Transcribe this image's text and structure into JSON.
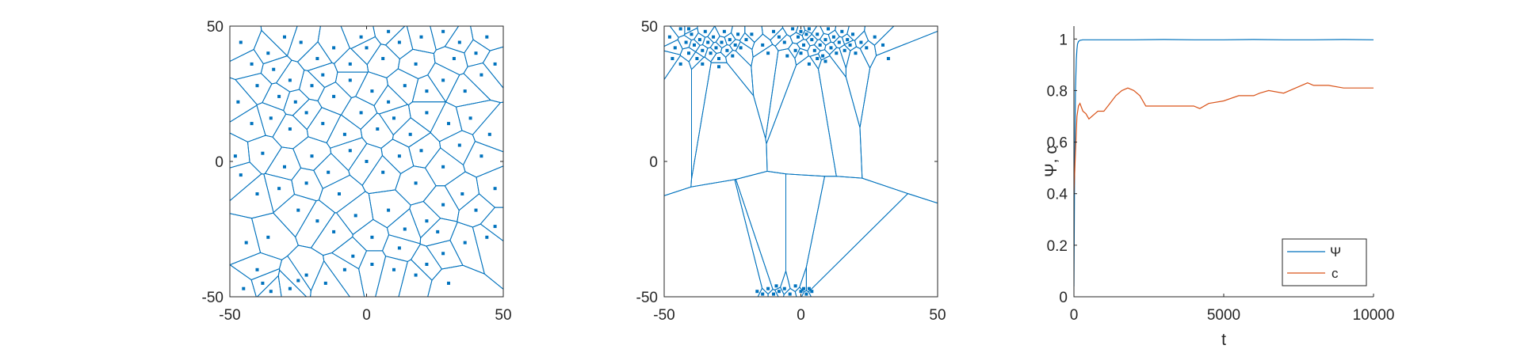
{
  "colors": {
    "blue": "#0072BD",
    "orange": "#D95319",
    "axis": "#262626",
    "background": "#ffffff"
  },
  "chart_data": [
    {
      "type": "scatter",
      "description_kind": "voronoi",
      "xlim": [
        -50,
        50
      ],
      "ylim": [
        -50,
        50
      ],
      "xticks": [
        "-50",
        "0",
        "50"
      ],
      "yticks": [
        "50",
        "0",
        "-50"
      ],
      "grid": false,
      "points": [
        [
          -45,
          -47
        ],
        [
          -40,
          -40
        ],
        [
          -38,
          -45
        ],
        [
          -35,
          -48
        ],
        [
          -28,
          -47
        ],
        [
          -25,
          -44
        ],
        [
          -22,
          -42
        ],
        [
          -15,
          -45
        ],
        [
          -8,
          -40
        ],
        [
          -5,
          -35
        ],
        [
          2,
          -38
        ],
        [
          10,
          -40
        ],
        [
          18,
          -42
        ],
        [
          22,
          -38
        ],
        [
          28,
          -34
        ],
        [
          30,
          -45
        ],
        [
          36,
          -30
        ],
        [
          44,
          -28
        ],
        [
          47,
          -24
        ],
        [
          40,
          -18
        ],
        [
          35,
          -12
        ],
        [
          28,
          -16
        ],
        [
          22,
          -22
        ],
        [
          14,
          -25
        ],
        [
          8,
          -18
        ],
        [
          2,
          -28
        ],
        [
          -4,
          -20
        ],
        [
          -12,
          -26
        ],
        [
          -18,
          -22
        ],
        [
          -25,
          -18
        ],
        [
          -32,
          -10
        ],
        [
          -40,
          -12
        ],
        [
          -46,
          -5
        ],
        [
          -48,
          2
        ],
        [
          -38,
          3
        ],
        [
          -30,
          -2
        ],
        [
          -22,
          -8
        ],
        [
          -14,
          -4
        ],
        [
          -6,
          4
        ],
        [
          0,
          0
        ],
        [
          6,
          -4
        ],
        [
          12,
          2
        ],
        [
          20,
          4
        ],
        [
          28,
          -2
        ],
        [
          34,
          6
        ],
        [
          42,
          2
        ],
        [
          47,
          -10
        ],
        [
          45,
          10
        ],
        [
          38,
          16
        ],
        [
          30,
          14
        ],
        [
          22,
          18
        ],
        [
          16,
          10
        ],
        [
          10,
          16
        ],
        [
          4,
          12
        ],
        [
          -2,
          18
        ],
        [
          -8,
          10
        ],
        [
          -16,
          14
        ],
        [
          -22,
          18
        ],
        [
          -28,
          12
        ],
        [
          -35,
          16
        ],
        [
          -42,
          14
        ],
        [
          -47,
          22
        ],
        [
          -40,
          28
        ],
        [
          -32,
          24
        ],
        [
          -26,
          22
        ],
        [
          -20,
          28
        ],
        [
          -12,
          24
        ],
        [
          -6,
          30
        ],
        [
          2,
          26
        ],
        [
          8,
          22
        ],
        [
          14,
          28
        ],
        [
          22,
          26
        ],
        [
          28,
          30
        ],
        [
          36,
          26
        ],
        [
          42,
          32
        ],
        [
          47,
          36
        ],
        [
          40,
          40
        ],
        [
          34,
          44
        ],
        [
          28,
          48
        ],
        [
          20,
          46
        ],
        [
          12,
          44
        ],
        [
          6,
          38
        ],
        [
          0,
          42
        ],
        [
          -6,
          36
        ],
        [
          -12,
          42
        ],
        [
          -18,
          38
        ],
        [
          -24,
          44
        ],
        [
          -30,
          46
        ],
        [
          -36,
          40
        ],
        [
          -42,
          36
        ],
        [
          -46,
          44
        ],
        [
          -34,
          34
        ],
        [
          -16,
          32
        ],
        [
          18,
          36
        ],
        [
          32,
          38
        ],
        [
          44,
          46
        ],
        [
          -2,
          46
        ],
        [
          8,
          48
        ],
        [
          -28,
          30
        ],
        [
          26,
          -26
        ],
        [
          -10,
          -12
        ],
        [
          18,
          -8
        ],
        [
          -36,
          -28
        ],
        [
          12,
          -32
        ],
        [
          -20,
          2
        ],
        [
          -44,
          -30
        ]
      ]
    },
    {
      "type": "scatter",
      "description_kind": "voronoi",
      "xlim": [
        -50,
        50
      ],
      "ylim": [
        -50,
        50
      ],
      "xticks": [
        "-50",
        "0",
        "50"
      ],
      "yticks": [
        "50",
        "0",
        "-50"
      ],
      "grid": false,
      "points": [
        [
          -48,
          46
        ],
        [
          -46,
          42
        ],
        [
          -44,
          49
        ],
        [
          -42,
          44
        ],
        [
          -41,
          40
        ],
        [
          -40,
          47
        ],
        [
          -39,
          43
        ],
        [
          -38,
          38
        ],
        [
          -37,
          45
        ],
        [
          -36,
          41
        ],
        [
          -35,
          48
        ],
        [
          -34,
          44
        ],
        [
          -33,
          40
        ],
        [
          -32,
          46
        ],
        [
          -31,
          42
        ],
        [
          -30,
          38
        ],
        [
          -29,
          44
        ],
        [
          -28,
          48
        ],
        [
          -27,
          41
        ],
        [
          -26,
          45
        ],
        [
          -25,
          39
        ],
        [
          -24,
          43
        ],
        [
          -23,
          47
        ],
        [
          -22,
          42
        ],
        [
          -20,
          45
        ],
        [
          -44,
          36
        ],
        [
          -36,
          36
        ],
        [
          -30,
          35
        ],
        [
          -47,
          38
        ],
        [
          -41,
          49
        ],
        [
          -18,
          47
        ],
        [
          -14,
          43
        ],
        [
          -10,
          48
        ],
        [
          -6,
          44
        ],
        [
          -3,
          49
        ],
        [
          -1,
          46
        ],
        [
          0,
          48
        ],
        [
          1,
          43
        ],
        [
          2,
          47
        ],
        [
          3,
          49
        ],
        [
          4,
          45
        ],
        [
          5,
          41
        ],
        [
          6,
          47
        ],
        [
          7,
          43
        ],
        [
          8,
          39
        ],
        [
          9,
          45
        ],
        [
          10,
          49
        ],
        [
          11,
          42
        ],
        [
          12,
          46
        ],
        [
          13,
          40
        ],
        [
          14,
          44
        ],
        [
          15,
          48
        ],
        [
          16,
          41
        ],
        [
          17,
          45
        ],
        [
          18,
          43
        ],
        [
          19,
          47
        ],
        [
          20,
          40
        ],
        [
          22,
          44
        ],
        [
          24,
          42
        ],
        [
          27,
          46
        ],
        [
          30,
          43
        ],
        [
          32,
          38
        ],
        [
          -2,
          41
        ],
        [
          -5,
          39
        ],
        [
          0,
          40
        ],
        [
          6,
          38
        ],
        [
          3,
          36
        ],
        [
          -8,
          46
        ],
        [
          -12,
          40
        ],
        [
          9,
          37
        ],
        [
          -16,
          -48
        ],
        [
          -14,
          -49
        ],
        [
          -12,
          -47
        ],
        [
          -10,
          -49
        ],
        [
          -8,
          -48
        ],
        [
          -6,
          -47
        ],
        [
          -4,
          -49
        ],
        [
          -2,
          -46
        ],
        [
          0,
          -48
        ],
        [
          1,
          -47
        ],
        [
          2,
          -49
        ],
        [
          3,
          -47
        ],
        [
          4,
          -48
        ],
        [
          -9,
          -46
        ]
      ]
    },
    {
      "type": "line",
      "xlim": [
        0,
        10000
      ],
      "ylim": [
        0,
        1.05
      ],
      "xticks": [
        "0",
        "5000",
        "10000"
      ],
      "yticks": [
        "0",
        "0.2",
        "0.4",
        "0.6",
        "0.8",
        "1"
      ],
      "xlabel": "t",
      "ylabel": "Ψ, c",
      "legend_position": "bottom-right",
      "grid": false,
      "series": [
        {
          "name": "Ψ",
          "color": "#0072BD",
          "x": [
            0,
            20,
            50,
            80,
            100,
            120,
            150,
            200,
            300,
            500,
            1000,
            2000,
            3000,
            4000,
            5000,
            6000,
            7000,
            8000,
            9000,
            10000
          ],
          "y": [
            0.04,
            0.45,
            0.8,
            0.92,
            0.96,
            0.98,
            0.99,
            0.995,
            0.997,
            0.997,
            0.997,
            0.997,
            0.998,
            0.997,
            0.997,
            0.998,
            0.997,
            0.997,
            0.998,
            0.997
          ]
        },
        {
          "name": "c",
          "color": "#D95319",
          "x": [
            0,
            50,
            100,
            150,
            200,
            300,
            400,
            500,
            600,
            700,
            800,
            1000,
            1200,
            1400,
            1600,
            1800,
            2000,
            2200,
            2400,
            2600,
            3000,
            3500,
            4000,
            4200,
            4500,
            5000,
            5500,
            6000,
            6200,
            6500,
            7000,
            7400,
            7800,
            8000,
            8500,
            9000,
            9500,
            10000
          ],
          "y": [
            0.4,
            0.56,
            0.7,
            0.74,
            0.75,
            0.72,
            0.71,
            0.69,
            0.7,
            0.71,
            0.72,
            0.72,
            0.75,
            0.78,
            0.8,
            0.81,
            0.8,
            0.78,
            0.74,
            0.74,
            0.74,
            0.74,
            0.74,
            0.73,
            0.75,
            0.76,
            0.78,
            0.78,
            0.79,
            0.8,
            0.79,
            0.81,
            0.83,
            0.82,
            0.82,
            0.81,
            0.81,
            0.81
          ]
        }
      ]
    }
  ]
}
